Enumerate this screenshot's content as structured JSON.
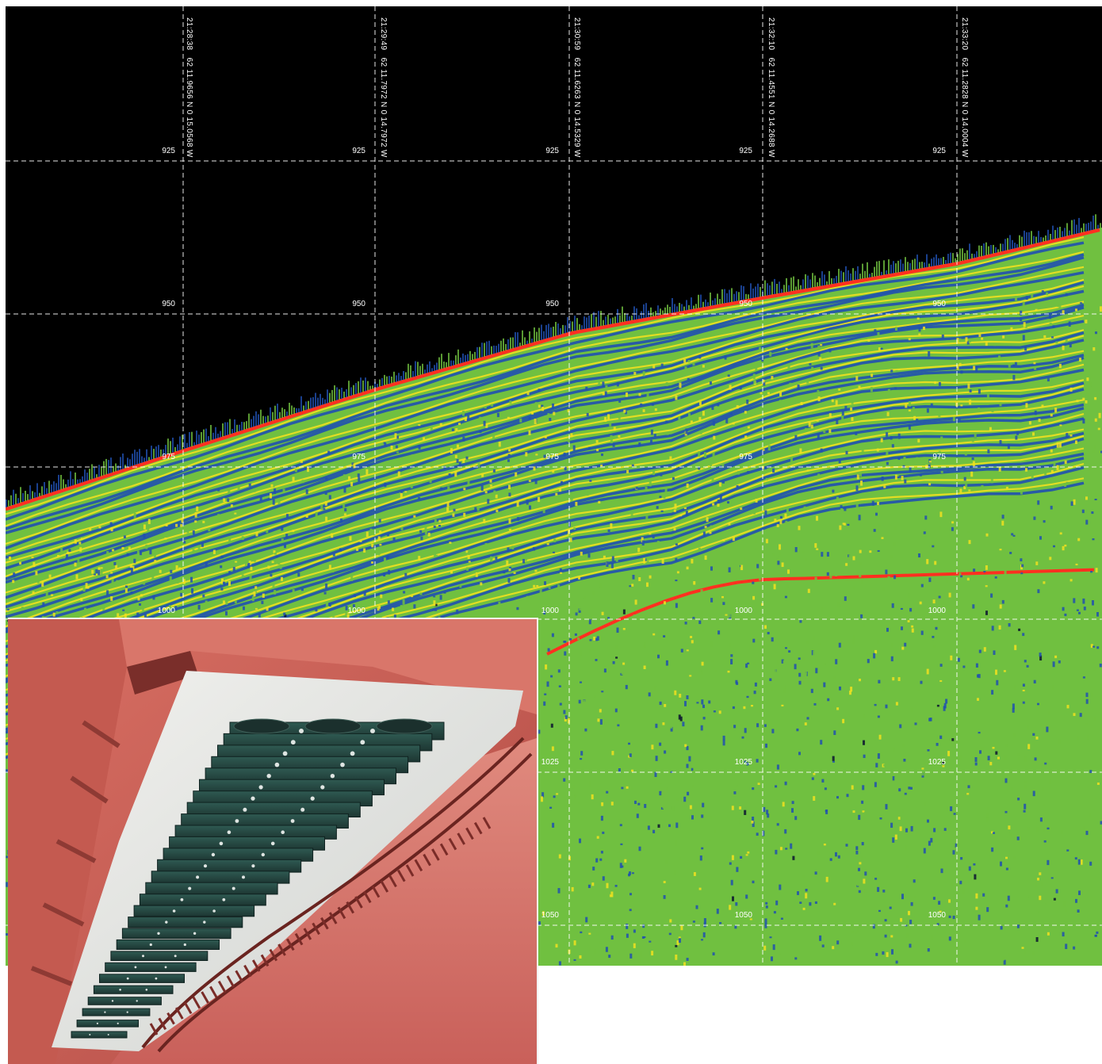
{
  "echogram": {
    "time_markers": [
      {
        "time": "21:28:38",
        "position": "62 11.9656 N 0 15.0568 W"
      },
      {
        "time": "21:29:49",
        "position": "62 11.7972 N 0 14.7972 W"
      },
      {
        "time": "21:30:59",
        "position": "62 11.6263 N 0 14.5329 W"
      },
      {
        "time": "21:32:10",
        "position": "62 11.4551 N 0 14.2688 W"
      },
      {
        "time": "21:33:20",
        "position": "62 11.2828 N 0 14.0004 W"
      }
    ],
    "depth_marks": [
      "925",
      "950",
      "975",
      "1000",
      "1025",
      "1050"
    ],
    "colors": {
      "background": "#000000",
      "seafloor": "#ff3020",
      "strong": "#f0e020",
      "medium": "#70c040",
      "weak": "#2050b0",
      "grid": "#ffffff"
    }
  },
  "inset_photo": {
    "subject": "transducer-array-hull-mount",
    "colors": {
      "hull": "#c85a52",
      "frame": "#e3e3df",
      "elements": "#27453f"
    }
  }
}
